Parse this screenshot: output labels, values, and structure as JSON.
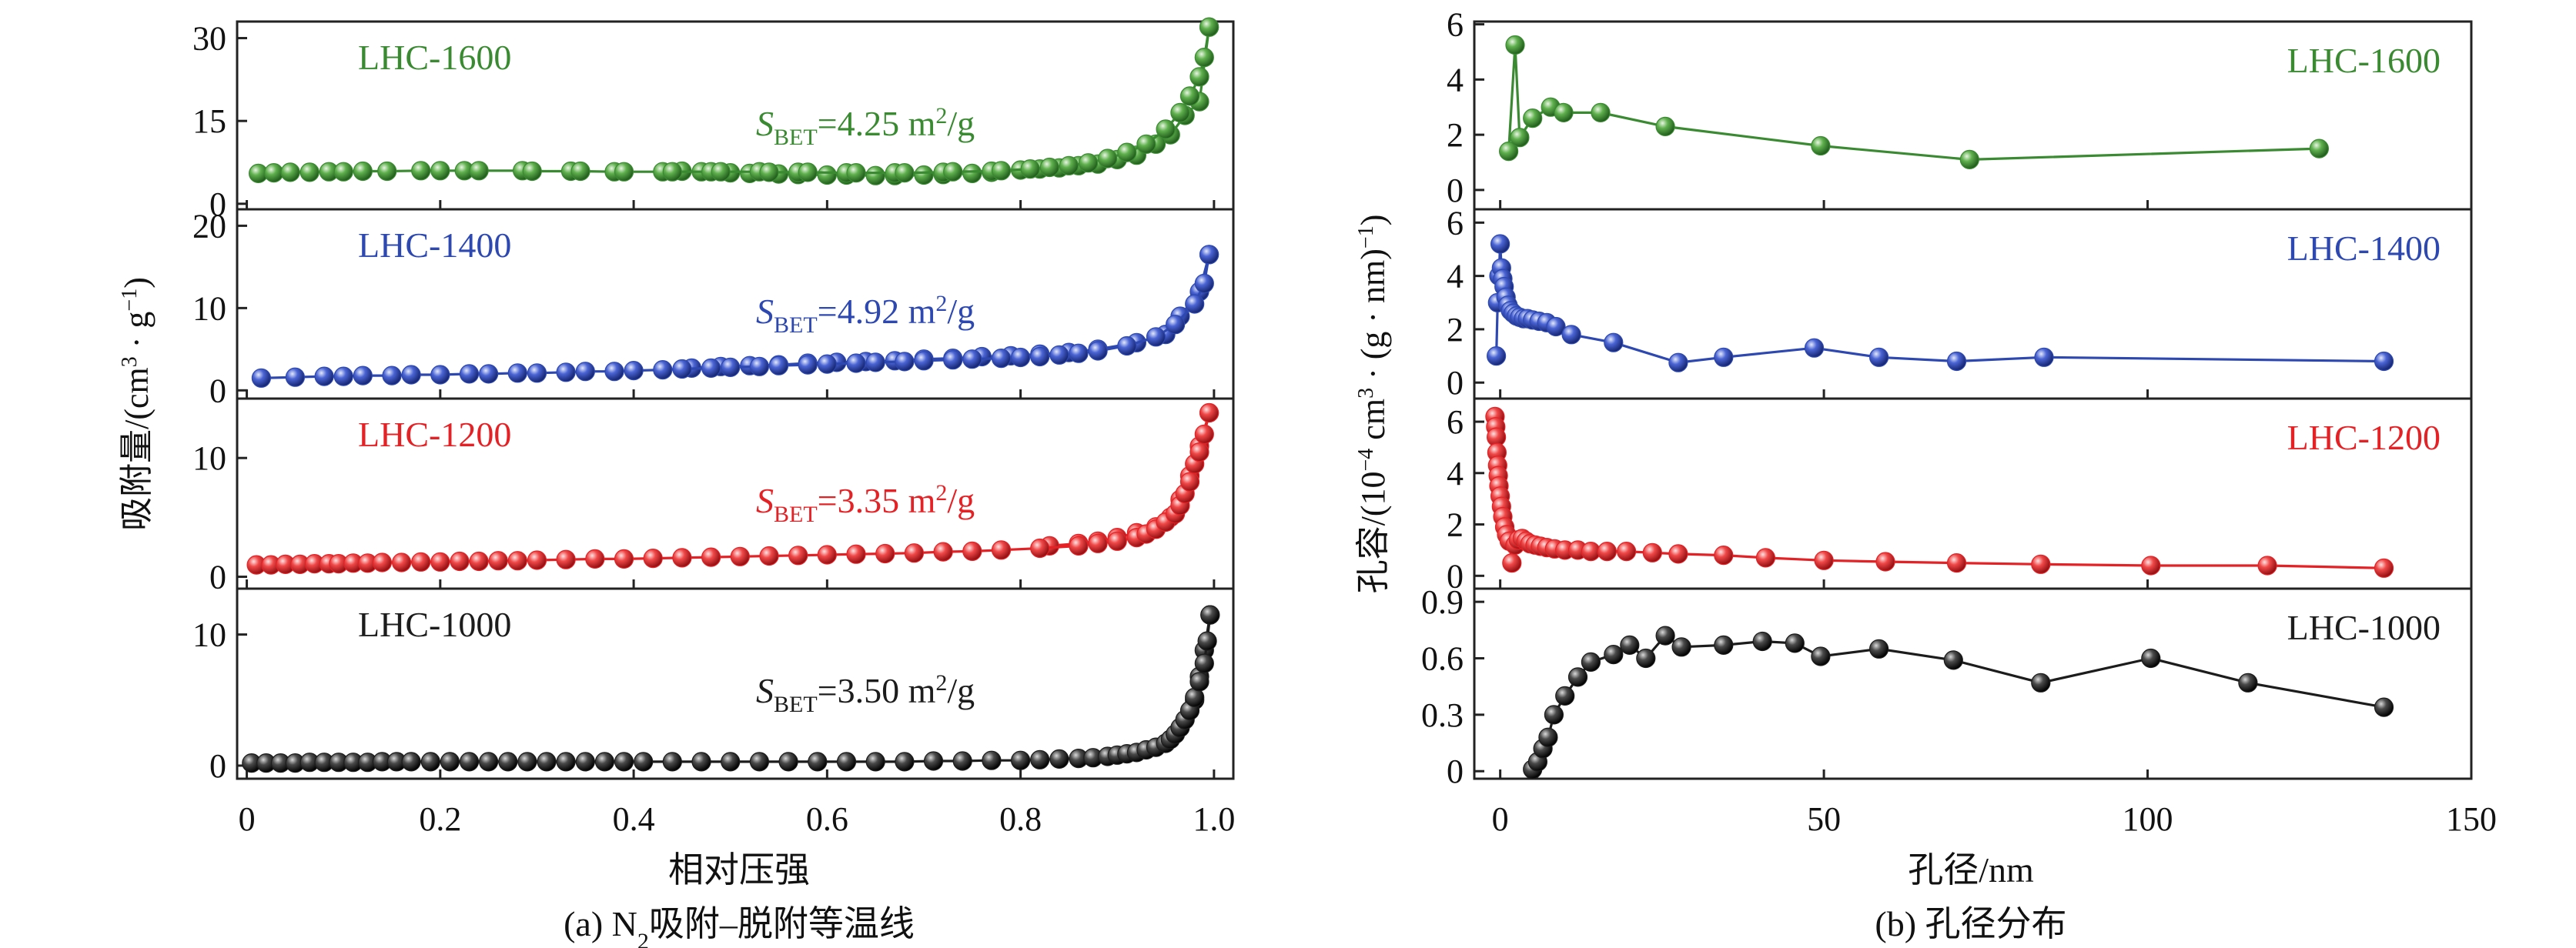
{
  "colors": {
    "LHC-1600": "#3a8a32",
    "LHC-1400": "#2d48b0",
    "LHC-1200": "#e42226",
    "LHC-1000": "#1c1c1c"
  },
  "panel_a": {
    "caption_prefix": "(a) N",
    "caption_sub": "2",
    "caption_suffix": "吸附–脱附等温线",
    "xlabel": "相对压强",
    "ylabel_prefix": "吸附量/(cm",
    "ylabel_sup1": "3",
    "ylabel_mid": " · g",
    "ylabel_sup2": "−1",
    "ylabel_suffix": ")",
    "sbet_prefix": "S",
    "sbet_sub": "BET",
    "sbet_unit_pre": " m",
    "sbet_unit_sup": "2",
    "sbet_unit_post": "/g",
    "x_ticks": [
      "0",
      "0.2",
      "0.4",
      "0.6",
      "0.8",
      "1.0"
    ]
  },
  "panel_b": {
    "caption": "(b) 孔径分布",
    "xlabel": "孔径/nm",
    "ylabel_prefix": "孔容/(10",
    "ylabel_sup1": "−4",
    "ylabel_mid1": " cm",
    "ylabel_sup2": "3",
    "ylabel_mid2": " · (g · nm)",
    "ylabel_sup3": "−1",
    "ylabel_suffix": ")",
    "x_ticks": [
      "0",
      "50",
      "100",
      "150"
    ]
  },
  "chart_data": [
    {
      "type": "line",
      "panel": "a",
      "xlabel": "相对压强",
      "xlim": [
        -0.01,
        1.02
      ],
      "subplots": [
        {
          "label": "LHC-1600",
          "sbet": "=4.25",
          "ylim": [
            -1,
            33
          ],
          "yticks": [
            0,
            15,
            30
          ],
          "adsorption": {
            "x": [
              0.012,
              0.028,
              0.045,
              0.065,
              0.085,
              0.1,
              0.12,
              0.145,
              0.18,
              0.2,
              0.225,
              0.24,
              0.285,
              0.295,
              0.335,
              0.345,
              0.38,
              0.39,
              0.43,
              0.44,
              0.48,
              0.49,
              0.53,
              0.54,
              0.57,
              0.58,
              0.62,
              0.63,
              0.67,
              0.68,
              0.72,
              0.73,
              0.77,
              0.78,
              0.81,
              0.83,
              0.85,
              0.87,
              0.89,
              0.91,
              0.93,
              0.95,
              0.965,
              0.975,
              0.985,
              0.99,
              0.995
            ],
            "y": [
              5.5,
              5.6,
              5.7,
              5.7,
              5.8,
              5.8,
              5.9,
              5.9,
              6.0,
              6.0,
              6.0,
              6.0,
              6.0,
              5.9,
              5.9,
              5.9,
              5.8,
              5.8,
              5.8,
              5.8,
              5.8,
              5.8,
              5.8,
              5.7,
              5.7,
              5.7,
              5.6,
              5.6,
              5.6,
              5.6,
              5.7,
              5.8,
              5.9,
              6.0,
              6.3,
              6.6,
              6.9,
              7.4,
              8.2,
              9.3,
              10.8,
              13.5,
              16.5,
              19.5,
              23.0,
              26.5,
              32.0
            ]
          },
          "desorption": {
            "x": [
              0.995,
              0.985,
              0.97,
              0.955,
              0.94,
              0.92,
              0.9,
              0.88,
              0.86,
              0.84,
              0.82,
              0.8,
              0.77,
              0.75,
              0.72,
              0.7,
              0.67,
              0.65,
              0.62,
              0.6,
              0.57,
              0.55,
              0.52,
              0.5,
              0.47,
              0.45
            ],
            "y": [
              32.0,
              18.5,
              16.0,
              12.5,
              10.8,
              8.8,
              8.0,
              7.2,
              6.9,
              6.5,
              6.3,
              6.1,
              5.7,
              5.5,
              5.3,
              5.2,
              5.1,
              5.1,
              5.2,
              5.2,
              5.3,
              5.4,
              5.5,
              5.6,
              5.8,
              5.9
            ]
          }
        },
        {
          "label": "LHC-1400",
          "sbet": "=4.92",
          "ylim": [
            -1,
            22
          ],
          "yticks": [
            0,
            10,
            20
          ],
          "adsorption": {
            "x": [
              0.015,
              0.05,
              0.08,
              0.1,
              0.12,
              0.15,
              0.17,
              0.2,
              0.23,
              0.25,
              0.28,
              0.3,
              0.33,
              0.35,
              0.38,
              0.4,
              0.43,
              0.45,
              0.48,
              0.5,
              0.53,
              0.55,
              0.58,
              0.6,
              0.63,
              0.65,
              0.68,
              0.7,
              0.73,
              0.75,
              0.78,
              0.8,
              0.82,
              0.84,
              0.86,
              0.88,
              0.91,
              0.94,
              0.96,
              0.98,
              0.99,
              0.995
            ],
            "y": [
              1.5,
              1.6,
              1.7,
              1.7,
              1.8,
              1.8,
              1.9,
              1.9,
              2.0,
              2.0,
              2.1,
              2.1,
              2.2,
              2.3,
              2.3,
              2.4,
              2.5,
              2.6,
              2.7,
              2.8,
              2.9,
              3.0,
              3.1,
              3.2,
              3.3,
              3.4,
              3.5,
              3.6,
              3.7,
              3.8,
              3.9,
              4.0,
              4.1,
              4.3,
              4.5,
              4.8,
              5.4,
              6.5,
              8.0,
              10.5,
              13.0,
              16.5
            ]
          },
          "desorption": {
            "x": [
              0.995,
              0.985,
              0.965,
              0.95,
              0.92,
              0.88,
              0.85,
              0.82,
              0.79,
              0.76,
              0.73,
              0.7,
              0.67,
              0.64,
              0.61,
              0.58,
              0.55,
              0.52,
              0.49,
              0.46
            ],
            "y": [
              16.5,
              12.0,
              9.0,
              6.8,
              5.8,
              5.0,
              4.6,
              4.4,
              4.2,
              4.1,
              3.9,
              3.8,
              3.6,
              3.5,
              3.4,
              3.3,
              3.1,
              3.0,
              2.9,
              2.7
            ]
          }
        },
        {
          "label": "LHC-1200",
          "sbet": "=3.35",
          "ylim": [
            -1,
            15
          ],
          "yticks": [
            0,
            10
          ],
          "adsorption": {
            "x": [
              0.01,
              0.025,
              0.04,
              0.055,
              0.07,
              0.085,
              0.095,
              0.11,
              0.125,
              0.14,
              0.16,
              0.18,
              0.2,
              0.22,
              0.24,
              0.26,
              0.28,
              0.3,
              0.33,
              0.36,
              0.39,
              0.42,
              0.45,
              0.48,
              0.51,
              0.54,
              0.57,
              0.6,
              0.63,
              0.66,
              0.69,
              0.72,
              0.75,
              0.78,
              0.82,
              0.86,
              0.88,
              0.9,
              0.92,
              0.93,
              0.94,
              0.95,
              0.96,
              0.965,
              0.97,
              0.975,
              0.98,
              0.985,
              0.99,
              0.995
            ],
            "y": [
              1.0,
              1.0,
              1.05,
              1.05,
              1.1,
              1.1,
              1.1,
              1.15,
              1.15,
              1.2,
              1.2,
              1.25,
              1.25,
              1.3,
              1.3,
              1.35,
              1.35,
              1.4,
              1.45,
              1.5,
              1.5,
              1.55,
              1.6,
              1.65,
              1.7,
              1.75,
              1.8,
              1.85,
              1.9,
              1.95,
              2.0,
              2.1,
              2.15,
              2.25,
              2.4,
              2.6,
              2.8,
              3.0,
              3.3,
              3.6,
              4.0,
              4.6,
              5.3,
              6.0,
              7.0,
              8.0,
              9.5,
              10.5,
              12.0,
              13.8
            ]
          },
          "desorption": {
            "x": [
              0.995,
              0.985,
              0.975,
              0.965,
              0.955,
              0.94,
              0.92,
              0.9,
              0.88,
              0.86,
              0.83
            ],
            "y": [
              13.8,
              11.0,
              8.5,
              6.5,
              5.0,
              4.2,
              3.7,
              3.3,
              3.0,
              2.8,
              2.6
            ]
          }
        },
        {
          "label": "LHC-1000",
          "sbet": "=3.50",
          "ylim": [
            -1,
            13.5
          ],
          "yticks": [
            0,
            10
          ],
          "adsorption": {
            "x": [
              0.005,
              0.02,
              0.035,
              0.05,
              0.065,
              0.08,
              0.095,
              0.11,
              0.125,
              0.14,
              0.155,
              0.17,
              0.19,
              0.21,
              0.23,
              0.25,
              0.27,
              0.29,
              0.31,
              0.33,
              0.35,
              0.37,
              0.39,
              0.41,
              0.44,
              0.47,
              0.5,
              0.53,
              0.56,
              0.59,
              0.62,
              0.65,
              0.68,
              0.71,
              0.74,
              0.77,
              0.8,
              0.82,
              0.84,
              0.86,
              0.875,
              0.89,
              0.9,
              0.91,
              0.92,
              0.93,
              0.94,
              0.95,
              0.955,
              0.96,
              0.965,
              0.97,
              0.975,
              0.98,
              0.985,
              0.99,
              0.993,
              0.996
            ],
            "y": [
              0.2,
              0.2,
              0.2,
              0.2,
              0.25,
              0.25,
              0.25,
              0.25,
              0.25,
              0.3,
              0.3,
              0.3,
              0.3,
              0.3,
              0.3,
              0.3,
              0.3,
              0.3,
              0.3,
              0.3,
              0.3,
              0.3,
              0.3,
              0.3,
              0.3,
              0.3,
              0.3,
              0.3,
              0.3,
              0.3,
              0.3,
              0.3,
              0.3,
              0.35,
              0.35,
              0.4,
              0.4,
              0.45,
              0.5,
              0.55,
              0.6,
              0.7,
              0.8,
              0.9,
              1.0,
              1.2,
              1.4,
              1.7,
              2.0,
              2.4,
              2.9,
              3.5,
              4.2,
              5.2,
              6.4,
              7.8,
              9.5,
              11.5
            ]
          },
          "desorption": {
            "x": [
              0.996,
              0.99,
              0.985,
              0.98
            ],
            "y": [
              11.5,
              8.8,
              6.8,
              5.0
            ]
          }
        }
      ]
    },
    {
      "type": "line",
      "panel": "b",
      "xlabel": "孔径/nm",
      "xlim": [
        -4,
        150
      ],
      "subplots": [
        {
          "label": "LHC-1600",
          "ylim": [
            -0.7,
            6.1
          ],
          "yticks": [
            0,
            2,
            4,
            6
          ],
          "x": [
            1.3,
            2.3,
            3.0,
            5.0,
            7.8,
            9.8,
            15.5,
            25.5,
            49.5,
            72.5,
            126.5
          ],
          "y": [
            1.4,
            5.25,
            1.9,
            2.6,
            3.0,
            2.8,
            2.8,
            2.3,
            1.6,
            1.1,
            1.5
          ]
        },
        {
          "label": "LHC-1400",
          "ylim": [
            -0.6,
            6.5
          ],
          "yticks": [
            0,
            2,
            4,
            6
          ],
          "x": [
            -0.6,
            -0.4,
            -0.2,
            0.0,
            0.2,
            0.4,
            0.6,
            0.9,
            1.2,
            1.6,
            2.0,
            2.5,
            3.0,
            3.6,
            4.2,
            5.0,
            6.0,
            7.2,
            8.6,
            11.0,
            17.5,
            27.5,
            34.5,
            48.5,
            58.5,
            70.5,
            84.0,
            136.5
          ],
          "y": [
            1.0,
            3.0,
            4.0,
            5.2,
            4.3,
            3.9,
            3.6,
            3.2,
            2.9,
            2.7,
            2.6,
            2.5,
            2.45,
            2.4,
            2.4,
            2.35,
            2.3,
            2.25,
            2.1,
            1.8,
            1.5,
            0.75,
            0.95,
            1.3,
            0.95,
            0.8,
            0.95,
            0.8
          ]
        },
        {
          "label": "LHC-1200",
          "ylim": [
            -0.5,
            6.9
          ],
          "yticks": [
            0,
            2,
            4,
            6
          ],
          "x": [
            -0.8,
            -0.7,
            -0.6,
            -0.5,
            -0.4,
            -0.3,
            -0.2,
            0.0,
            0.2,
            0.4,
            0.7,
            1.0,
            1.4,
            1.8,
            2.3,
            2.8,
            3.4,
            4.0,
            4.6,
            5.4,
            6.2,
            7.2,
            8.4,
            10.0,
            12.0,
            14.0,
            16.5,
            19.5,
            23.5,
            27.5,
            34.5,
            41.0,
            50.0,
            59.5,
            70.5,
            83.5,
            100.5,
            118.5,
            136.5
          ],
          "y": [
            6.2,
            5.8,
            5.4,
            4.8,
            4.3,
            3.9,
            3.5,
            3.1,
            2.7,
            2.3,
            1.9,
            1.6,
            1.35,
            0.5,
            1.2,
            1.4,
            1.45,
            1.35,
            1.25,
            1.2,
            1.15,
            1.1,
            1.05,
            1.0,
            1.0,
            0.95,
            0.95,
            0.95,
            0.9,
            0.85,
            0.8,
            0.7,
            0.6,
            0.55,
            0.5,
            0.45,
            0.4,
            0.4,
            0.3
          ]
        },
        {
          "label": "LHC-1000",
          "ylim": [
            -0.04,
            0.97
          ],
          "yticks": [
            0,
            0.3,
            0.6,
            0.9
          ],
          "yticklabels": [
            "0",
            "0.3",
            "0.6",
            "0.9"
          ],
          "x": [
            5.0,
            5.8,
            6.6,
            7.4,
            8.3,
            10.0,
            12.0,
            14.0,
            17.5,
            20.0,
            22.5,
            25.5,
            28.0,
            34.5,
            40.5,
            45.5,
            49.5,
            58.5,
            70.0,
            83.5,
            100.5,
            115.5,
            136.5
          ],
          "y": [
            0.01,
            0.05,
            0.12,
            0.18,
            0.3,
            0.4,
            0.5,
            0.58,
            0.62,
            0.67,
            0.6,
            0.72,
            0.66,
            0.67,
            0.69,
            0.68,
            0.61,
            0.65,
            0.59,
            0.47,
            0.6,
            0.47,
            0.34
          ]
        }
      ]
    }
  ]
}
